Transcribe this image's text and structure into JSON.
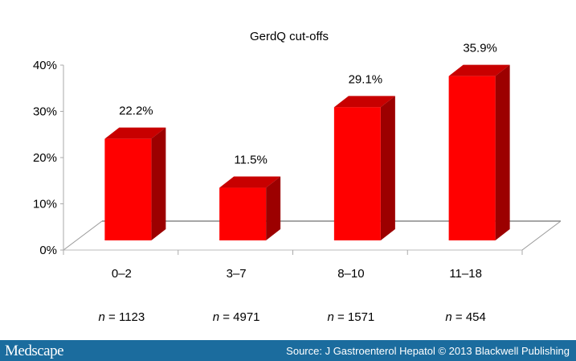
{
  "chart_data": {
    "type": "bar",
    "title": "GerdQ cut-offs",
    "categories": [
      "0–2",
      "3–7",
      "8–10",
      "11–18"
    ],
    "values": [
      22.2,
      11.5,
      29.1,
      35.9
    ],
    "data_labels": [
      "22.2%",
      "11.5%",
      "29.1%",
      "35.9%"
    ],
    "n_labels": [
      "1123",
      "4971",
      "1571",
      "454"
    ],
    "n_prefix": "n",
    "ylim": [
      0,
      40
    ],
    "yticks": [
      "0%",
      "10%",
      "20%",
      "30%",
      "40%"
    ],
    "ytick_values": [
      0,
      10,
      20,
      30,
      40
    ],
    "bar_style": "3d",
    "grid": false,
    "colors": {
      "front": "#ff0000",
      "top": "#c80000",
      "side": "#9c0000"
    }
  },
  "footer": {
    "logo": "Medscape",
    "source": "Source: J Gastroenterol Hepatol © 2013 Blackwell Publishing",
    "background": "#1b6c9e"
  }
}
